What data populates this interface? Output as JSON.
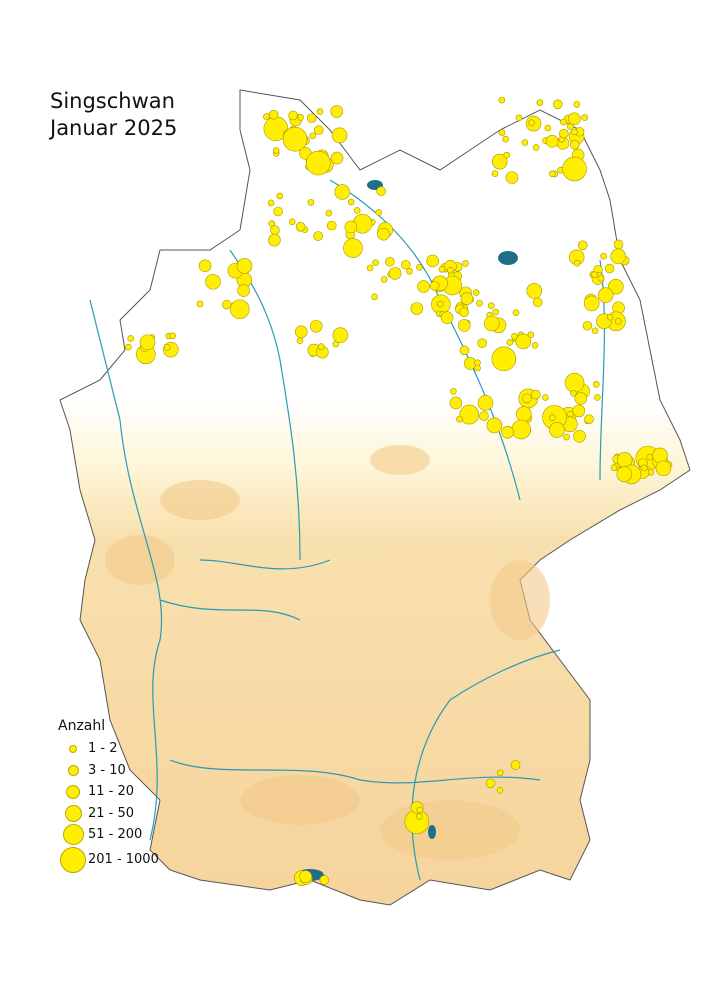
{
  "title": {
    "line1": "Singschwan",
    "line2": "Januar 2025"
  },
  "legend": {
    "heading": "Anzahl",
    "classes": [
      {
        "label": "1 - 2"
      },
      {
        "label": "3 - 10"
      },
      {
        "label": "11 - 20"
      },
      {
        "label": "21 - 50"
      },
      {
        "label": "51 - 200"
      },
      {
        "label": "201 - 1000"
      }
    ]
  },
  "colors": {
    "symbol": "#ffee00",
    "rivers": "#2a9ab5",
    "lakes": "#1f6e86",
    "lowland": "#ffffff",
    "upland": "#f7d9a4",
    "borders": "#555555"
  }
}
